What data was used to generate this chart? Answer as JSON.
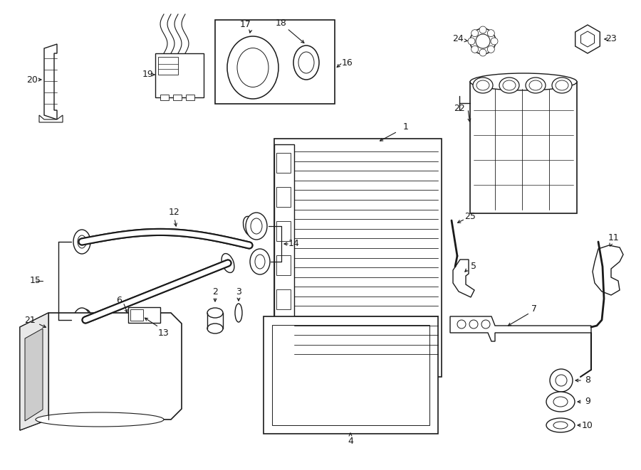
{
  "bg": "#ffffff",
  "lc": "#1a1a1a",
  "fig_w": 9.0,
  "fig_h": 6.61,
  "dpi": 100
}
